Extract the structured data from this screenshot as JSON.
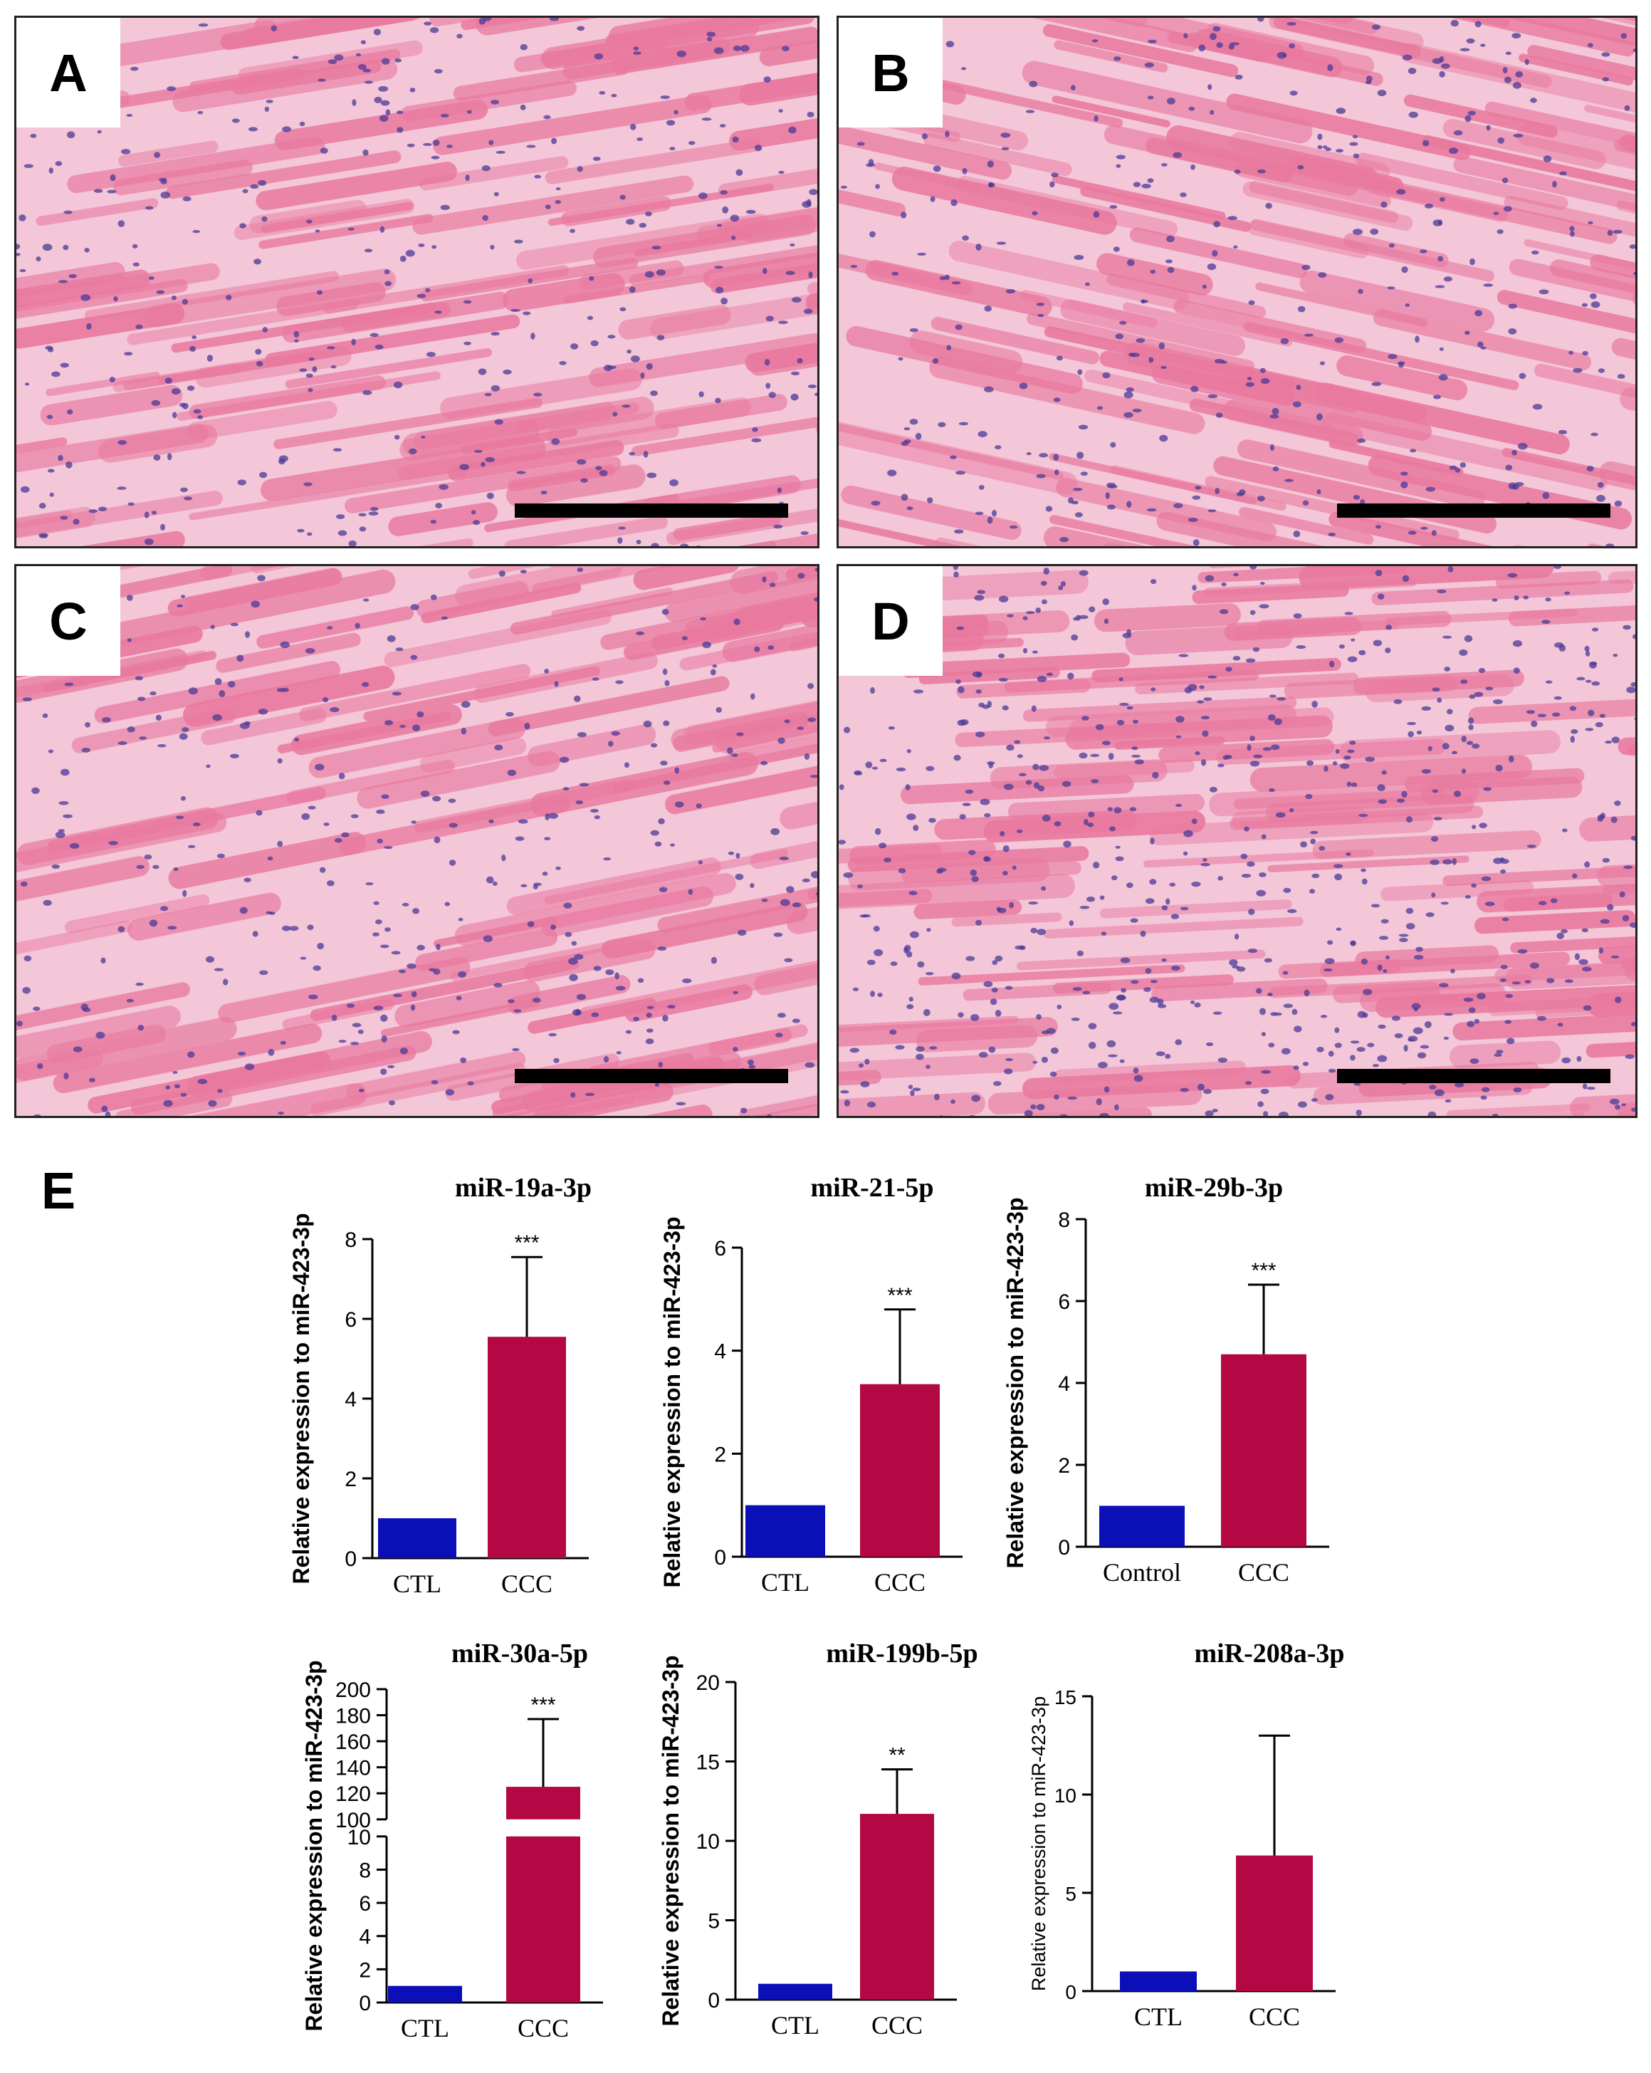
{
  "panels": [
    {
      "letter": "A"
    },
    {
      "letter": "B"
    },
    {
      "letter": "C"
    },
    {
      "letter": "D"
    }
  ],
  "panel_e_label": "E",
  "colors": {
    "tissue_pink": "#e9799f",
    "tissue_light": "#f3c6d8",
    "nucleus": "#4a3a96",
    "ctl_bar": "#0b0fb8",
    "ccc_bar": "#b40845",
    "axis": "#000000"
  },
  "chart_data": [
    {
      "type": "bar",
      "title": "miR-19a-3p",
      "ylabel": "Relative expression to miR-423-3p",
      "categories": [
        "CTL",
        "CCC"
      ],
      "values": [
        1.0,
        5.55
      ],
      "error_upper": [
        null,
        7.55
      ],
      "ylim": [
        0,
        8
      ],
      "yticks": [
        "0",
        "2",
        "4",
        "6",
        "8"
      ],
      "significance": "***"
    },
    {
      "type": "bar",
      "title": "miR-21-5p",
      "ylabel": "Relative expression to miR-423-3p",
      "categories": [
        "CTL",
        "CCC"
      ],
      "values": [
        1.0,
        3.35
      ],
      "error_upper": [
        null,
        4.8
      ],
      "ylim": [
        0,
        6
      ],
      "yticks": [
        "0",
        "2",
        "4",
        "6"
      ],
      "significance": "***"
    },
    {
      "type": "bar",
      "title": "miR-29b-3p",
      "ylabel": "Relative expression to miR-423-3p",
      "categories": [
        "Control",
        "CCC"
      ],
      "values": [
        1.0,
        4.7
      ],
      "error_upper": [
        null,
        6.4
      ],
      "ylim": [
        0,
        8
      ],
      "yticks": [
        "0",
        "2",
        "4",
        "6",
        "8"
      ],
      "significance": "***"
    },
    {
      "type": "bar",
      "title": "miR-30a-5p",
      "ylabel": "Relative expression to miR-423-3p",
      "categories": [
        "CTL",
        "CCC"
      ],
      "values": [
        1.0,
        125
      ],
      "error_upper": [
        null,
        177
      ],
      "ylim": [
        0,
        200
      ],
      "axis_break": {
        "lower_range": [
          0,
          10
        ],
        "upper_range": [
          100,
          200
        ]
      },
      "yticks": [
        "0",
        "2",
        "4",
        "6",
        "8",
        "10",
        "100",
        "120",
        "140",
        "160",
        "180",
        "200"
      ],
      "significance": "***"
    },
    {
      "type": "bar",
      "title": "miR-199b-5p",
      "ylabel": "Relative expression to miR-423-3p",
      "categories": [
        "CTL",
        "CCC"
      ],
      "values": [
        1.0,
        11.7
      ],
      "error_upper": [
        null,
        14.5
      ],
      "ylim": [
        0,
        20
      ],
      "yticks": [
        "0",
        "5",
        "10",
        "15",
        "20"
      ],
      "significance": "**"
    },
    {
      "type": "bar",
      "title": "miR-208a-3p",
      "ylabel": "Relative expression to miR-423-3p",
      "categories": [
        "CTL",
        "CCC"
      ],
      "values": [
        1.0,
        6.9
      ],
      "error_upper": [
        null,
        13.0
      ],
      "ylim": [
        0,
        15
      ],
      "yticks": [
        "0",
        "5",
        "10",
        "15"
      ],
      "significance": ""
    }
  ]
}
